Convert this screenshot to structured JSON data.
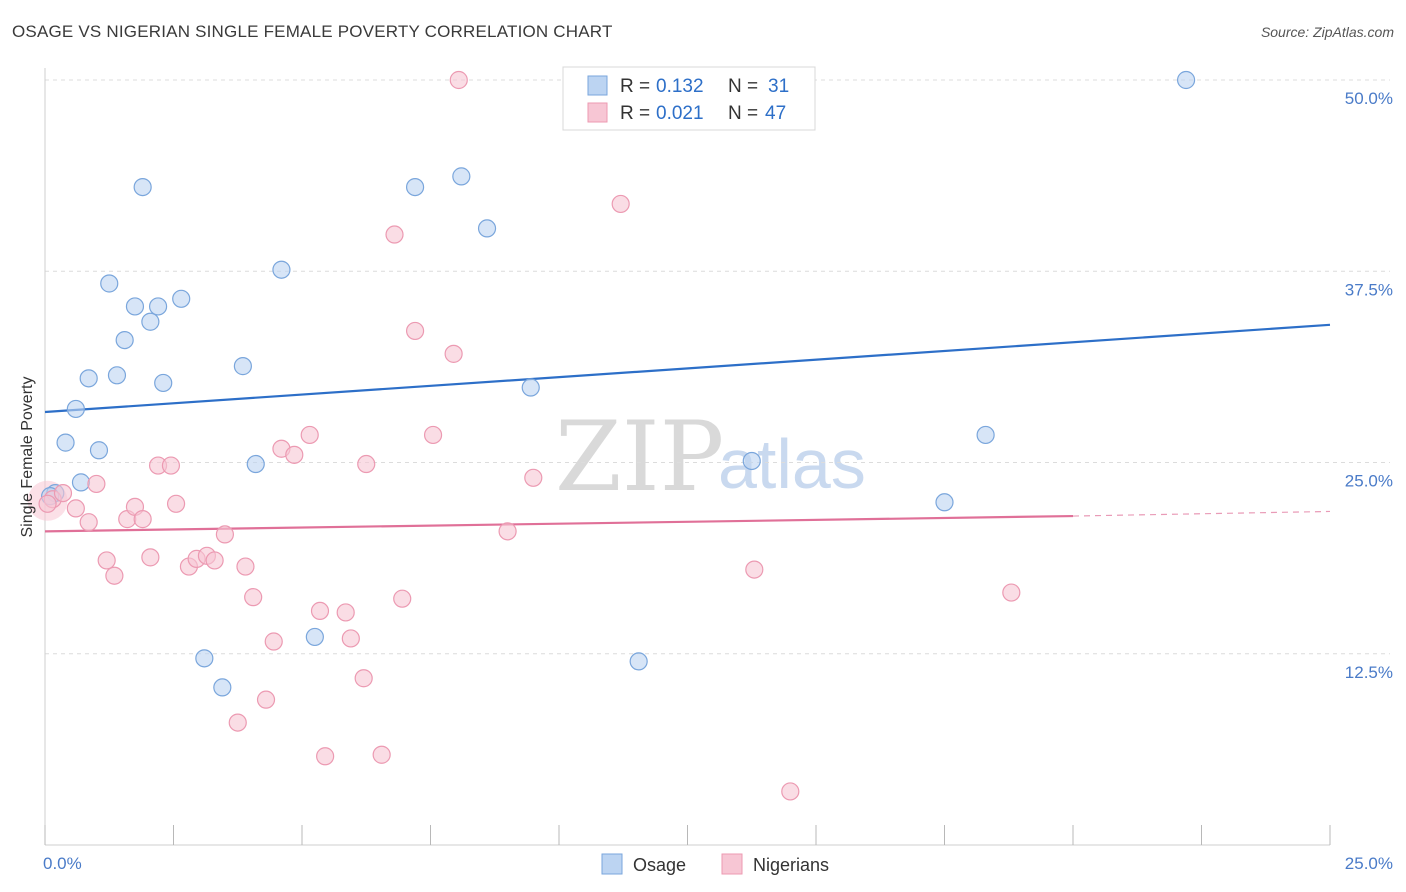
{
  "title": "OSAGE VS NIGERIAN SINGLE FEMALE POVERTY CORRELATION CHART",
  "source": "Source: ZipAtlas.com",
  "watermark": {
    "part1": "ZIP",
    "part2": "atlas"
  },
  "colors": {
    "osage_fill": "#bcd4f2",
    "osage_stroke": "#7aa6dc",
    "osage_line": "#2d6fc8",
    "nigerian_fill": "#f7c6d4",
    "nigerian_stroke": "#ec9ab2",
    "nigerian_line": "#e07098",
    "value_blue": "#2d6fc8",
    "grid": "#dcdcdc"
  },
  "legend": {
    "r_label": "R =",
    "n_label": "N =",
    "osage": {
      "r": "0.132",
      "n": "31"
    },
    "nigerians": {
      "r": "0.021",
      "n": "47"
    }
  },
  "bottom_legend": {
    "osage": "Osage",
    "nigerians": "Nigerians"
  },
  "chart_data": {
    "type": "scatter",
    "title": "OSAGE VS NIGERIAN SINGLE FEMALE POVERTY CORRELATION CHART",
    "xlabel": "",
    "ylabel": "Single Female Poverty",
    "xlim": [
      0,
      25
    ],
    "ylim": [
      0,
      50
    ],
    "x_tick_labels": [
      "0.0%",
      "25.0%"
    ],
    "y_ticks": [
      12.5,
      25,
      37.5,
      50
    ],
    "y_tick_labels": [
      "12.5%",
      "25.0%",
      "37.5%",
      "50.0%"
    ],
    "grid": true,
    "series": [
      {
        "name": "Osage",
        "points": [
          [
            0.2,
            23.0
          ],
          [
            0.4,
            26.3
          ],
          [
            0.6,
            28.5
          ],
          [
            0.85,
            30.5
          ],
          [
            0.7,
            23.7
          ],
          [
            1.05,
            25.8
          ],
          [
            1.25,
            36.7
          ],
          [
            1.4,
            30.7
          ],
          [
            1.55,
            33.0
          ],
          [
            1.75,
            35.2
          ],
          [
            1.9,
            43.0
          ],
          [
            2.05,
            34.2
          ],
          [
            2.2,
            35.2
          ],
          [
            2.3,
            30.2
          ],
          [
            2.65,
            35.7
          ],
          [
            3.1,
            12.2
          ],
          [
            3.45,
            10.3
          ],
          [
            4.1,
            24.9
          ],
          [
            3.85,
            31.3
          ],
          [
            4.6,
            37.6
          ],
          [
            5.25,
            13.6
          ],
          [
            7.2,
            43.0
          ],
          [
            8.1,
            43.7
          ],
          [
            8.6,
            40.3
          ],
          [
            9.45,
            29.9
          ],
          [
            11.55,
            12.0
          ],
          [
            13.75,
            25.1
          ],
          [
            17.5,
            22.4
          ],
          [
            18.3,
            26.8
          ],
          [
            22.2,
            50.0
          ],
          [
            0.1,
            22.8
          ]
        ],
        "trend": {
          "x": [
            0,
            25
          ],
          "y": [
            28.3,
            34.0
          ]
        }
      },
      {
        "name": "Nigerians",
        "points": [
          [
            0.15,
            22.6
          ],
          [
            0.35,
            23.0
          ],
          [
            0.6,
            22.0
          ],
          [
            0.85,
            21.1
          ],
          [
            1.0,
            23.6
          ],
          [
            1.2,
            18.6
          ],
          [
            1.35,
            17.6
          ],
          [
            1.6,
            21.3
          ],
          [
            1.75,
            22.1
          ],
          [
            1.9,
            21.3
          ],
          [
            2.05,
            18.8
          ],
          [
            2.2,
            24.8
          ],
          [
            2.45,
            24.8
          ],
          [
            2.55,
            22.3
          ],
          [
            2.8,
            18.2
          ],
          [
            2.95,
            18.7
          ],
          [
            3.15,
            18.9
          ],
          [
            3.3,
            18.6
          ],
          [
            3.5,
            20.3
          ],
          [
            3.75,
            8.0
          ],
          [
            3.9,
            18.2
          ],
          [
            4.05,
            16.2
          ],
          [
            4.3,
            9.5
          ],
          [
            4.45,
            13.3
          ],
          [
            4.6,
            25.9
          ],
          [
            4.85,
            25.5
          ],
          [
            5.15,
            26.8
          ],
          [
            5.35,
            15.3
          ],
          [
            5.45,
            5.8
          ],
          [
            5.85,
            15.2
          ],
          [
            5.95,
            13.5
          ],
          [
            6.2,
            10.9
          ],
          [
            6.25,
            24.9
          ],
          [
            6.55,
            5.9
          ],
          [
            6.8,
            39.9
          ],
          [
            6.95,
            16.1
          ],
          [
            7.2,
            33.6
          ],
          [
            7.55,
            26.8
          ],
          [
            7.95,
            32.1
          ],
          [
            8.05,
            50.0
          ],
          [
            9.0,
            20.5
          ],
          [
            9.5,
            24.0
          ],
          [
            11.2,
            41.9
          ],
          [
            13.8,
            18.0
          ],
          [
            14.5,
            3.5
          ],
          [
            18.8,
            16.5
          ],
          [
            0.05,
            22.3
          ]
        ],
        "trend": {
          "x": [
            0,
            20
          ],
          "y": [
            20.5,
            21.5
          ],
          "dashed_to": [
            25,
            21.8
          ]
        }
      }
    ]
  }
}
